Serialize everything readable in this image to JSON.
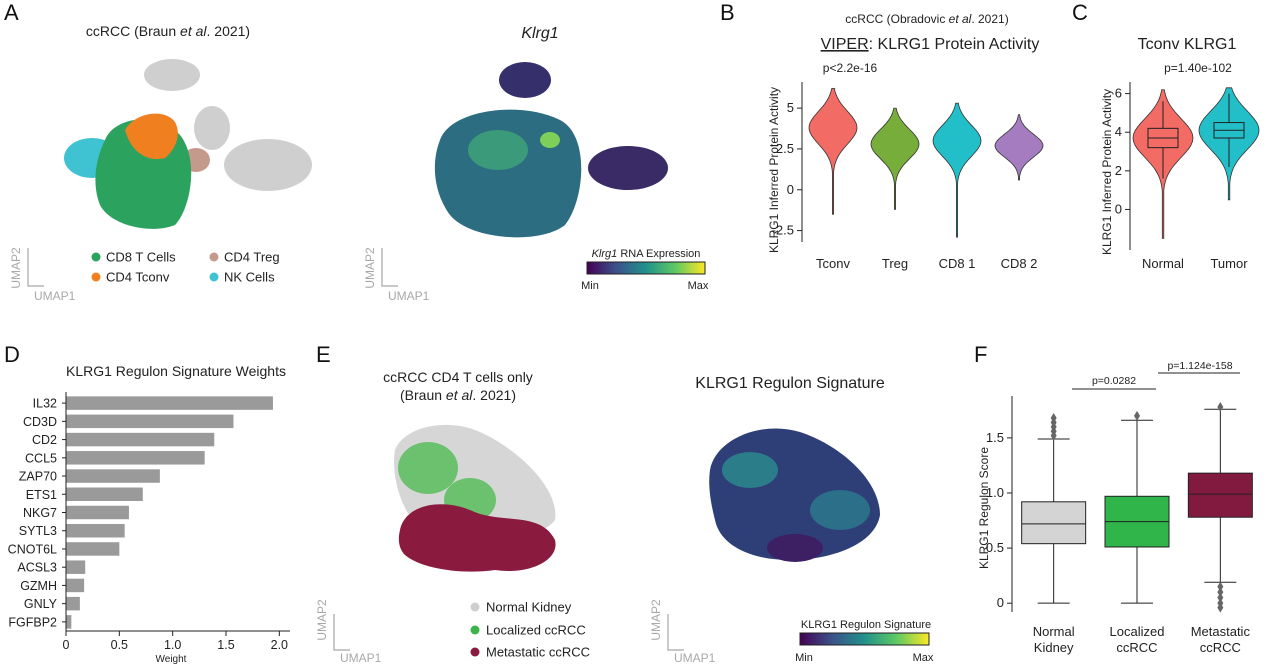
{
  "panels": {
    "A": {
      "letter": "A",
      "umap_title_pre": "ccRCC (Braun ",
      "umap_title_em": "et al",
      "umap_title_post": ". 2021)",
      "expr_title": "Klrg1",
      "umap_x": "UMAP1",
      "umap_y": "UMAP2",
      "legend": [
        {
          "label": "CD8 T Cells",
          "color": "#2ca25f"
        },
        {
          "label": "CD4 Treg",
          "color": "#c49a8c"
        },
        {
          "label": "CD4 Tconv",
          "color": "#f07f1f"
        },
        {
          "label": "NK Cells",
          "color": "#3fc3d3"
        }
      ],
      "colorbar_title_em": "Klrg1",
      "colorbar_title_rest": " RNA Expression",
      "colorbar_min": "Min",
      "colorbar_max": "Max"
    },
    "B": {
      "letter": "B",
      "title_line1_pre": "ccRCC (Obradovic ",
      "title_line1_em": "et al",
      "title_line1_post": ". 2021)",
      "title_viper": "VIPER",
      "title_rest": ": KLRG1 Protein Activity",
      "pvalue": "p<2.2e-16",
      "ylabel": "KLRG1 Inferred Protein Activity"
    },
    "C": {
      "letter": "C",
      "title": "Tconv KLRG1",
      "pvalue": "p=1.40e-102",
      "ylabel": "KLRG1 Inferred Protein Activity"
    },
    "D": {
      "letter": "D",
      "title": "KLRG1 Regulon Signature Weights"
    },
    "E": {
      "letter": "E",
      "title_line1": "ccRCC CD4 T cells only",
      "title_line2_pre": "(Braun ",
      "title_line2_em": "et al",
      "title_line2_post": ". 2021)",
      "sig_title": "KLRG1 Regulon Signature",
      "umap_x": "UMAP1",
      "umap_y": "UMAP2",
      "legend": [
        {
          "label": "Normal Kidney",
          "color": "#cfcfcf"
        },
        {
          "label": "Localized ccRCC",
          "color": "#3cb44b"
        },
        {
          "label": "Metastatic ccRCC",
          "color": "#8b1a3f"
        }
      ],
      "colorbar_title": "KLRG1 Regulon Signature",
      "colorbar_min": "Min",
      "colorbar_max": "Max"
    },
    "F": {
      "letter": "F",
      "p1": "p=0.0282",
      "p2": "p=1.124e-158"
    }
  },
  "chart_data": [
    {
      "id": "B",
      "type": "violin",
      "categories": [
        "Tconv",
        "Treg",
        "CD8 1",
        "CD8 2"
      ],
      "colors": [
        "#f26b64",
        "#77ad3a",
        "#22bfc9",
        "#a57cc0"
      ],
      "series": [
        {
          "min": -1.5,
          "max": 6.2,
          "center": 3.8,
          "spread": 1.0
        },
        {
          "min": -1.2,
          "max": 5.0,
          "center": 2.8,
          "spread": 0.9
        },
        {
          "min": -2.9,
          "max": 5.3,
          "center": 3.0,
          "spread": 0.95
        },
        {
          "min": 0.6,
          "max": 4.6,
          "center": 2.7,
          "spread": 0.7
        }
      ],
      "ylim": [
        -3.2,
        6.6
      ],
      "yticks": [
        -2.5,
        0,
        2.5,
        5
      ],
      "ytick_labels": [
        "-2.5",
        "0",
        "2.5",
        "5"
      ],
      "ylabel": "KLRG1 Inferred Protein Activity"
    },
    {
      "id": "C",
      "type": "violin-box",
      "categories": [
        "Normal",
        "Tumor"
      ],
      "colors": [
        "#f26b64",
        "#22bfc9"
      ],
      "series": [
        {
          "name": "Normal",
          "min": -1.5,
          "max": 6.2,
          "q1": 3.2,
          "median": 3.7,
          "q3": 4.2,
          "whisker_low": 1.6,
          "whisker_high": 5.6
        },
        {
          "name": "Tumor",
          "min": 0.5,
          "max": 6.3,
          "q1": 3.7,
          "median": 4.1,
          "q3": 4.5,
          "whisker_low": 2.2,
          "whisker_high": 6.0
        }
      ],
      "ylim": [
        -2.1,
        6.6
      ],
      "yticks": [
        0,
        2,
        4,
        6
      ],
      "ytick_labels": [
        "0",
        "2",
        "4",
        "6"
      ],
      "ylabel": "KLRG1 Inferred Protein Activity",
      "pvalue": "p=1.40e-102"
    },
    {
      "id": "D",
      "type": "bar",
      "orientation": "horizontal",
      "title": "KLRG1 Regulon Signature Weights",
      "categories": [
        "IL32",
        "CD3D",
        "CD2",
        "CCL5",
        "ZAP70",
        "ETS1",
        "NKG7",
        "SYTL3",
        "CNOT6L",
        "ACSL3",
        "GZMH",
        "GNLY",
        "FGFBP2"
      ],
      "values": [
        1.94,
        1.57,
        1.39,
        1.3,
        0.88,
        0.72,
        0.59,
        0.55,
        0.5,
        0.18,
        0.17,
        0.13,
        0.05
      ],
      "xlabel": "Weight",
      "xlim": [
        0,
        2.1
      ],
      "xticks": [
        0,
        0.5,
        1.0,
        1.5,
        2.0
      ],
      "xtick_labels": [
        "0",
        "0.5",
        "1.0",
        "1.5",
        "2.0"
      ],
      "color": "#9a9a9a"
    },
    {
      "id": "F",
      "type": "box",
      "categories": [
        [
          "Normal",
          "Kidney"
        ],
        [
          "Localized",
          "ccRCC"
        ],
        [
          "Metastatic",
          "ccRCC"
        ]
      ],
      "colors": [
        "#d4d4d4",
        "#2fb54a",
        "#821a40"
      ],
      "series": [
        {
          "q1": 0.54,
          "median": 0.72,
          "q3": 0.92,
          "whisker_low": 0.0,
          "whisker_high": 1.49,
          "outliers": [
            1.52,
            1.56,
            1.6,
            1.64,
            1.68
          ]
        },
        {
          "q1": 0.51,
          "median": 0.74,
          "q3": 0.97,
          "whisker_low": 0.0,
          "whisker_high": 1.66,
          "outliers": [
            1.7
          ]
        },
        {
          "q1": 0.78,
          "median": 0.99,
          "q3": 1.18,
          "whisker_low": 0.19,
          "whisker_high": 1.76,
          "outliers": [
            1.78,
            0.15,
            0.1,
            0.05,
            0.0,
            -0.04
          ]
        }
      ],
      "ylim": [
        -0.08,
        1.88
      ],
      "yticks": [
        0,
        0.5,
        1.0,
        1.5
      ],
      "ytick_labels": [
        "0",
        "0.5",
        "1.0",
        "1.5"
      ],
      "ylabel": "KLRG1 Regulon Score",
      "pvalues": [
        "p=0.0282",
        "p=1.124e-158"
      ]
    }
  ]
}
